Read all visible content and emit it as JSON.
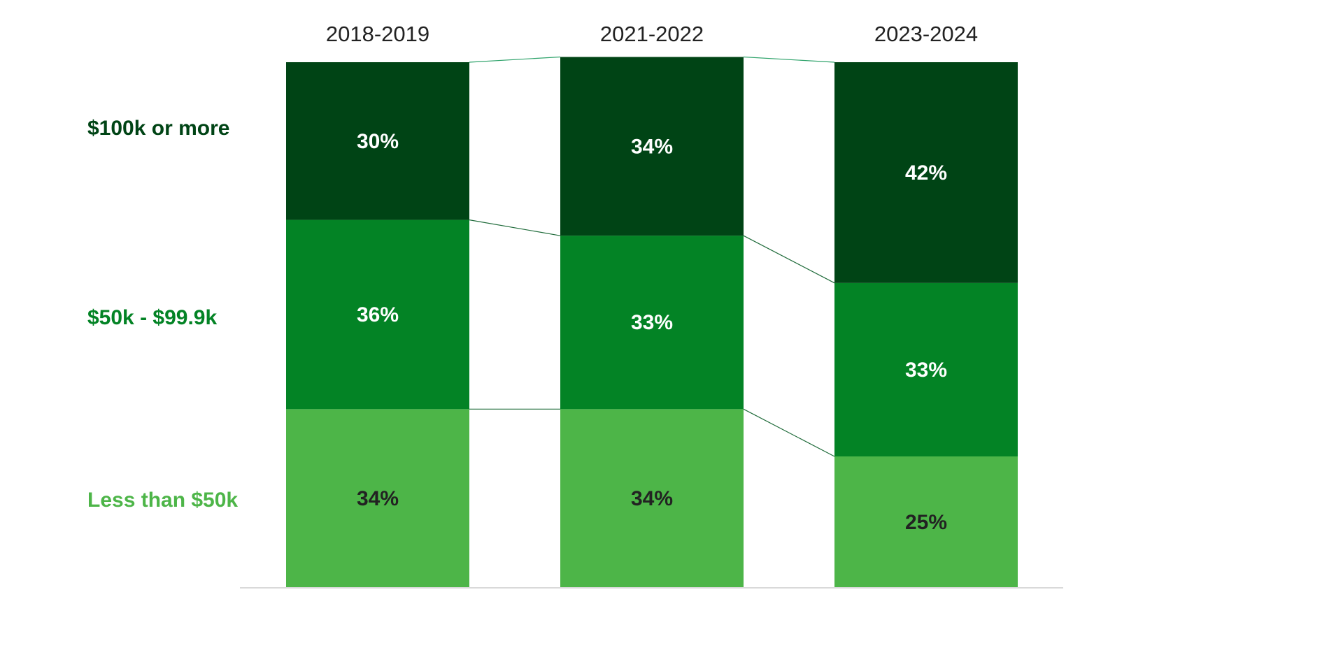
{
  "chart_data": {
    "type": "bar",
    "stacked": true,
    "normalized_percent": true,
    "categories": [
      "2018-2019",
      "2021-2022",
      "2023-2024"
    ],
    "series": [
      {
        "name": "Less than $50k",
        "values": [
          34,
          34,
          25
        ],
        "color": "#4db548",
        "label_color": "#222222"
      },
      {
        "name": "$50k - $99.9k",
        "values": [
          36,
          33,
          33
        ],
        "color": "#038325",
        "label_color": "#ffffff"
      },
      {
        "name": "$100k or more",
        "values": [
          30,
          34,
          42
        ],
        "color": "#004415",
        "label_color": "#ffffff"
      }
    ],
    "value_format": "{v}%",
    "ylim": [
      0,
      100
    ],
    "legend": "left",
    "connector_lines": true,
    "title": "",
    "xlabel": "",
    "ylabel": ""
  }
}
